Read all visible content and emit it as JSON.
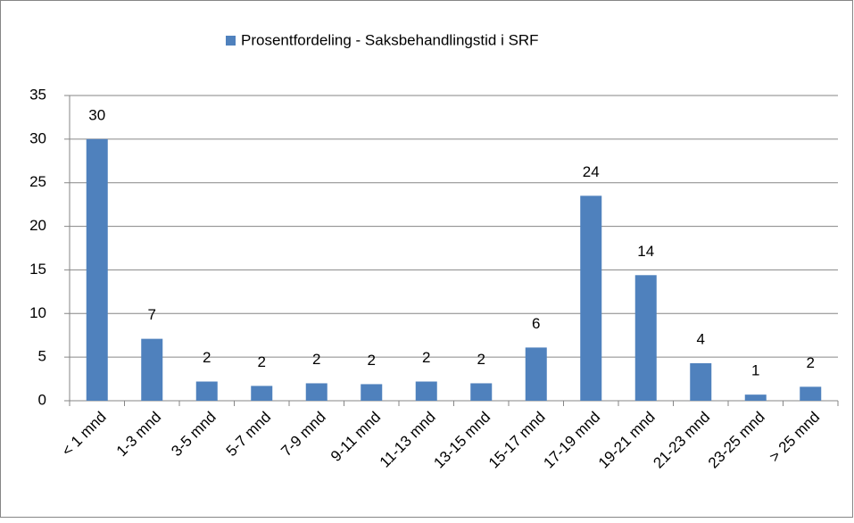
{
  "chart_data": {
    "type": "bar",
    "categories": [
      "< 1 mnd",
      "1-3 mnd",
      "3-5 mnd",
      "5-7 mnd",
      "7-9 mnd",
      "9-11 mnd",
      "11-13 mnd",
      "13-15 mnd",
      "15-17 mnd",
      "17-19 mnd",
      "19-21 mnd",
      "21-23 mnd",
      "23-25 mnd",
      "> 25 mnd"
    ],
    "series": [
      {
        "name": "Prosentfordeling - Saksbehandlingstid i SRF",
        "color": "#4f81bd",
        "values": [
          30.0,
          7.1,
          2.2,
          1.7,
          2.0,
          1.9,
          2.2,
          2.0,
          6.1,
          23.5,
          14.4,
          4.3,
          0.7,
          1.6
        ],
        "value_labels": [
          "30",
          "7",
          "2",
          "2",
          "2",
          "2",
          "2",
          "2",
          "6",
          "24",
          "14",
          "4",
          "1",
          "2"
        ]
      }
    ],
    "ylim": [
      0,
      35
    ],
    "yticks": [
      0,
      5,
      10,
      15,
      20,
      25,
      30,
      35
    ],
    "grid": true,
    "legend": "top"
  }
}
